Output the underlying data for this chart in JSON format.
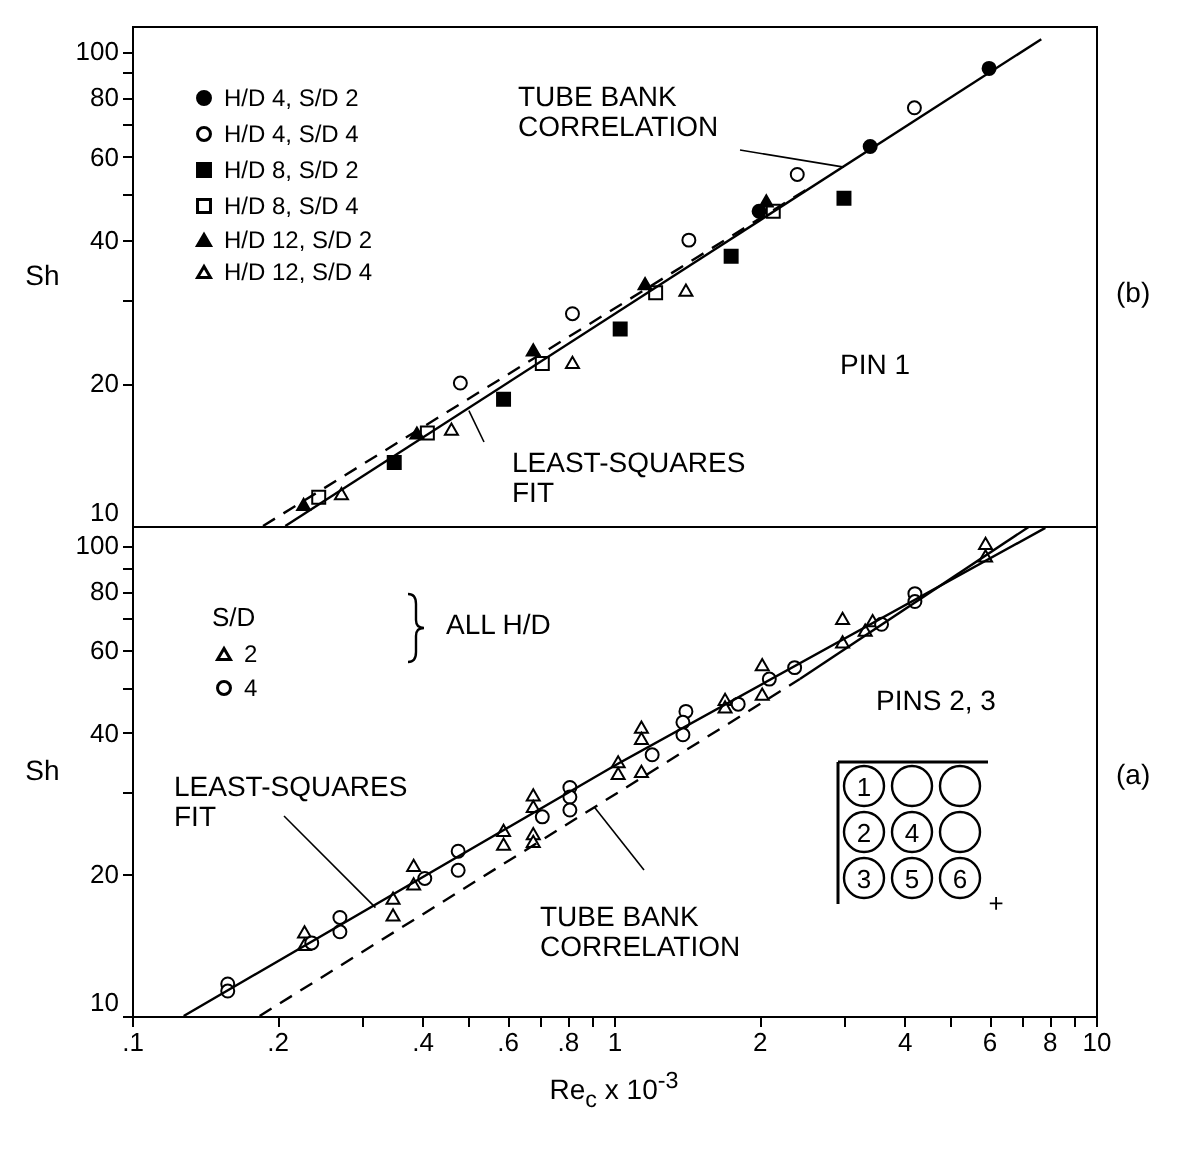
{
  "chart_data": [
    {
      "type": "scatter",
      "ylabel": "Sh",
      "log": "xy",
      "xlim": [
        0.1,
        10
      ],
      "ylim": [
        10,
        113
      ],
      "tick_labels": "y",
      "legend": "top left",
      "xticks": [
        0.1,
        0.2,
        0.3,
        0.4,
        0.5,
        0.6,
        0.7,
        0.8,
        0.9,
        1,
        2,
        3,
        4,
        5,
        6,
        7,
        8,
        9,
        10
      ],
      "yticks": [
        10,
        20,
        {
          "value": 30,
          "label": null
        },
        40,
        {
          "value": 50,
          "label": null
        },
        60,
        {
          "value": 70,
          "label": null
        },
        80,
        {
          "value": 90,
          "label": null
        },
        100
      ],
      "series": [
        {
          "name": "H/D 4, S/D 2",
          "color": "#000000",
          "marker": "circle",
          "x": [
            2.0,
            3.4,
            6.0
          ],
          "values": [
            46,
            63,
            92
          ]
        },
        {
          "name": "H/D 4, S/D 4",
          "color": "#ffffff",
          "marker": "circle",
          "x": [
            0.48,
            0.82,
            1.43,
            2.4,
            4.2
          ],
          "values": [
            20,
            28,
            40,
            55,
            76
          ]
        },
        {
          "name": "H/D 8, S/D 2",
          "color": "#000000",
          "marker": "square",
          "x": [
            0.35,
            0.59,
            1.03,
            1.75,
            3.0
          ],
          "values": [
            13.6,
            18.5,
            26,
            37,
            49
          ]
        },
        {
          "name": "H/D 8, S/D 4",
          "color": "#ffffff",
          "marker": "square",
          "x": [
            0.244,
            0.41,
            0.71,
            1.22,
            2.14
          ],
          "values": [
            11.5,
            15.7,
            22,
            31,
            46
          ]
        },
        {
          "name": "H/D 12, S/D 2",
          "color": "#000000",
          "marker": "triangle",
          "x": [
            0.227,
            0.39,
            0.68,
            1.16,
            2.07
          ],
          "values": [
            11.1,
            15.7,
            23.5,
            32.4,
            48.4
          ]
        },
        {
          "name": "H/D 12, S/D 4",
          "color": "#ffffff",
          "marker": "triangle",
          "x": [
            0.272,
            0.46,
            0.82,
            1.41
          ],
          "values": [
            11.7,
            16,
            22.1,
            31.4
          ]
        },
        {
          "type": "line",
          "color": "#000000",
          "line_style": "solid",
          "x": [
            0.208,
            7.7
          ],
          "values": [
            10,
            106
          ]
        },
        {
          "type": "line",
          "color": "#000000",
          "line_style": "dashed",
          "x": [
            0.187,
            2.5
          ],
          "values": [
            10,
            51
          ]
        }
      ],
      "annotations": [
        {
          "text": "TUBE BANK\nCORRELATION",
          "x": 3.0,
          "y": 57
        },
        {
          "text": "LEAST-SQUARES\nFIT",
          "x": 0.5,
          "y": 17.5
        },
        "PIN 1",
        "(b)"
      ]
    },
    {
      "type": "scatter",
      "xlabel": "Re$_{c}$ x 10$^{-3}$",
      "ylabel": "Sh",
      "log": "xy",
      "xlim": [
        0.1,
        10
      ],
      "ylim": [
        10,
        110
      ],
      "legend": "top left",
      "legend_title": "S/D",
      "xticks": [
        {
          "value": 0.1,
          "label": ".1"
        },
        {
          "value": 0.2,
          "label": ".2"
        },
        {
          "value": 0.3,
          "label": null
        },
        {
          "value": 0.4,
          "label": ".4"
        },
        {
          "value": 0.5,
          "label": null
        },
        {
          "value": 0.6,
          "label": ".6"
        },
        {
          "value": 0.7,
          "label": null
        },
        {
          "value": 0.8,
          "label": ".8"
        },
        {
          "value": 0.9,
          "label": null
        },
        1,
        2,
        {
          "value": 3,
          "label": null
        },
        4,
        {
          "value": 5,
          "label": null
        },
        6,
        {
          "value": 7,
          "label": null
        },
        8,
        {
          "value": 9,
          "label": null
        },
        10
      ],
      "yticks": [
        10,
        20,
        {
          "value": 30,
          "label": null
        },
        40,
        {
          "value": 50,
          "label": null
        },
        60,
        {
          "value": 70,
          "label": null
        },
        80,
        {
          "value": 90,
          "label": null
        },
        100
      ],
      "series": [
        {
          "name": "2",
          "color": "#ffffff",
          "marker": "triangle",
          "x": [
            5.9,
            5.9,
            2.98,
            2.98,
            3.44,
            3.32,
            2.03,
            2.03,
            1.7,
            1.7,
            1.02,
            1.02,
            1.14,
            1.14,
            1.14,
            0.68,
            0.68,
            0.68,
            0.68,
            0.59,
            0.59,
            0.384,
            0.384,
            0.348,
            0.348,
            0.228,
            0.228
          ],
          "values": [
            101,
            95,
            70,
            62.4,
            69.2,
            66.1,
            55.8,
            48.3,
            47.1,
            45.4,
            34.7,
            32.8,
            41.1,
            38.9,
            33.1,
            29.5,
            27.9,
            24.4,
            23.5,
            24.8,
            23.2,
            20.9,
            19.1,
            17.8,
            16.4,
            15.1,
            14.2
          ]
        },
        {
          "name": "4",
          "color": "#ffffff",
          "marker": "circle",
          "x": [
            4.21,
            4.21,
            3.59,
            2.37,
            2.1,
            1.81,
            1.41,
            1.39,
            1.39,
            1.2,
            0.81,
            0.81,
            0.81,
            0.71,
            0.475,
            0.475,
            0.405,
            0.27,
            0.27,
            0.236,
            0.158,
            0.158
          ],
          "values": [
            79,
            76,
            68,
            55,
            52,
            46,
            44.4,
            42.1,
            39.6,
            35.9,
            30.6,
            29.2,
            27.4,
            26.5,
            22.4,
            20.4,
            19.6,
            16.2,
            15.1,
            14.3,
            11.7,
            11.3
          ]
        },
        {
          "type": "line",
          "color": "#000000",
          "line_style": "solid",
          "x": [
            0.128,
            1,
            7.85
          ],
          "values": [
            10,
            34,
            109
          ]
        },
        {
          "type": "line",
          "color": "#000000",
          "line_style": "dashed",
          "x": [
            0.184,
            2.43
          ],
          "values": [
            10,
            52
          ]
        },
        {
          "type": "line",
          "color": "#000000",
          "line_style": "solid",
          "x": [
            2.43,
            7.3
          ],
          "values": [
            52,
            110
          ]
        }
      ],
      "annotations": [
        {
          "text": "TUBE BANK\nCORRELATION",
          "x": 0.91,
          "y": 27.8
        },
        {
          "text": "LEAST-SQUARES\nFIT",
          "x": 0.32,
          "y": 17.0
        },
        "PINS 2, 3",
        "(a)",
        "ALL H/D",
        "1",
        "2",
        "3",
        "4",
        "5",
        "6",
        "+"
      ]
    }
  ]
}
